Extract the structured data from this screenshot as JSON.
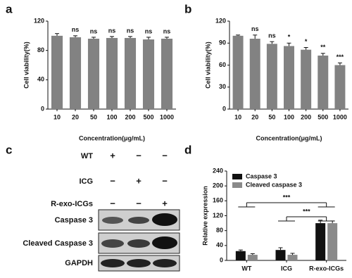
{
  "chart_data": [
    {
      "type": "bar",
      "panel": "a",
      "x_label": "Concentration(μg/mL)",
      "y_label": "Cell viability(%)",
      "categories": [
        "10",
        "20",
        "50",
        "100",
        "200",
        "500",
        "1000"
      ],
      "series": [
        {
          "color": "#828282",
          "values": [
            100,
            98,
            96,
            97,
            97,
            95,
            96
          ],
          "errors": [
            3,
            2,
            2,
            2,
            2,
            3,
            2
          ]
        }
      ],
      "significance": [
        null,
        "ns",
        "ns",
        "ns",
        "ns",
        "ns",
        "ns"
      ],
      "ylim": [
        0,
        120
      ],
      "yticks": [
        0,
        40,
        80,
        120
      ]
    },
    {
      "type": "bar",
      "panel": "b",
      "x_label": "Concentration(μg/mL)",
      "y_label": "Cell viability(%)",
      "categories": [
        "10",
        "20",
        "50",
        "100",
        "200",
        "500",
        "1000"
      ],
      "series": [
        {
          "color": "#828282",
          "values": [
            100,
            96,
            89,
            86,
            81,
            73,
            60
          ],
          "errors": [
            1,
            5,
            3,
            4,
            3,
            3,
            3
          ]
        }
      ],
      "significance": [
        null,
        "ns",
        "ns",
        "*",
        "*",
        "**",
        "***"
      ],
      "ylim": [
        0,
        120
      ],
      "yticks": [
        0,
        30,
        60,
        90,
        120
      ]
    },
    {
      "type": "bar",
      "panel": "d",
      "y_label": "Relative expression",
      "categories": [
        "WT",
        "ICG",
        "R-exo-ICGs"
      ],
      "series": [
        {
          "name": "Caspase 3",
          "color": "#111111",
          "values": [
            25,
            28,
            100
          ],
          "errors": [
            3,
            6,
            8
          ]
        },
        {
          "name": "Cleaved caspase 3",
          "color": "#8a8a8a",
          "values": [
            15,
            15,
            100
          ],
          "errors": [
            3,
            4,
            6
          ]
        }
      ],
      "annotations": [
        "***",
        "***"
      ],
      "ylim": [
        0,
        240
      ],
      "yticks": [
        0,
        40,
        80,
        120,
        160,
        200,
        240
      ]
    }
  ],
  "blot": {
    "panel": "c",
    "conditions": [
      {
        "name": "WT",
        "signs": [
          "+",
          "−",
          "−"
        ]
      },
      {
        "name": "ICG",
        "signs": [
          "−",
          "+",
          "−"
        ]
      },
      {
        "name": "R-exo-ICGs",
        "signs": [
          "−",
          "−",
          "+"
        ]
      }
    ],
    "bands": [
      "Caspase 3",
      "Cleaved Caspase 3",
      "GAPDH"
    ]
  }
}
